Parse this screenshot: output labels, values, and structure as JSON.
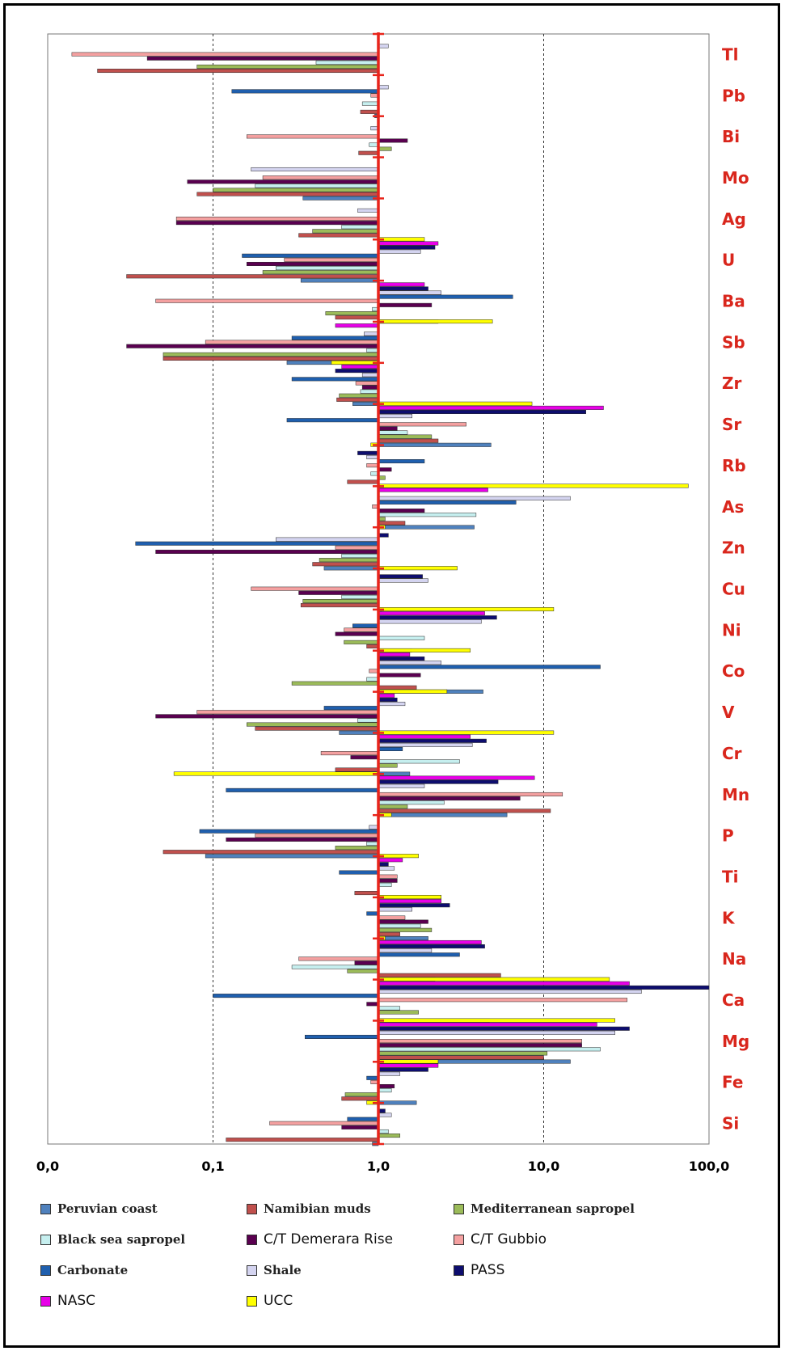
{
  "chart_data": {
    "type": "bar",
    "orientation": "horizontal",
    "x_scale": "log",
    "xlim": [
      0.01,
      100
    ],
    "x_tick_labels": [
      "0,0",
      "0,1",
      "1,0",
      "10,0",
      "100,0"
    ],
    "grid": "dotted vertical lines at 0.1 and 10",
    "reference_line": {
      "value": 1.0,
      "color": "#e8241b"
    },
    "categories": [
      "Tl",
      "Pb",
      "Bi",
      "Mo",
      "Ag",
      "U",
      "Ba",
      "Sb",
      "Zr",
      "Sr",
      "Rb",
      "As",
      "Zn",
      "Cu",
      "Ni",
      "Co",
      "V",
      "Cr",
      "Mn",
      "P",
      "Ti",
      "K",
      "Na",
      "Ca",
      "Mg",
      "Fe",
      "Si"
    ],
    "series": [
      {
        "name": "Peruvian coast",
        "color": "#4f81bd",
        "label_style": "serif",
        "values": [
          null,
          0.95,
          null,
          0.35,
          null,
          0.34,
          2.3,
          0.28,
          0.7,
          4.8,
          1.1,
          3.8,
          0.47,
          1.05,
          1.6,
          4.3,
          0.58,
          1.55,
          6.0,
          0.09,
          null,
          2.0,
          2.2,
          4.7,
          14.5,
          1.7,
          0.92
        ]
      },
      {
        "name": "Namibian muds",
        "color": "#c0504d",
        "label_style": "serif",
        "values": [
          0.02,
          0.78,
          0.76,
          0.08,
          0.33,
          0.03,
          0.55,
          0.05,
          0.56,
          2.3,
          0.65,
          1.45,
          0.4,
          0.34,
          0.85,
          1.7,
          0.18,
          0.55,
          11.0,
          0.05,
          0.72,
          1.35,
          5.5,
          null,
          10.0,
          0.6,
          0.12
        ]
      },
      {
        "name": "Mediterranean sapropel",
        "color": "#9bbb59",
        "label_style": "serif",
        "values": [
          0.08,
          null,
          1.2,
          0.1,
          0.4,
          0.2,
          0.48,
          0.05,
          0.58,
          2.1,
          1.1,
          1.1,
          0.44,
          0.35,
          0.62,
          0.3,
          0.16,
          1.3,
          1.5,
          0.55,
          null,
          2.1,
          0.65,
          1.75,
          10.5,
          0.63,
          1.35
        ]
      },
      {
        "name": "Black sea sapropel",
        "color": "#c6efef",
        "label_style": "serif",
        "values": [
          0.42,
          0.8,
          0.88,
          0.18,
          0.6,
          0.24,
          0.92,
          0.85,
          0.78,
          1.5,
          0.9,
          3.9,
          0.6,
          0.6,
          1.9,
          0.85,
          0.75,
          3.1,
          2.5,
          0.85,
          1.2,
          1.8,
          0.3,
          1.35,
          22.0,
          1.2,
          1.15
        ]
      },
      {
        "name": "C/T Demerara Rise",
        "color": "#5a0050",
        "label_style": "sans",
        "values": [
          0.04,
          null,
          1.5,
          0.07,
          0.06,
          0.16,
          2.1,
          0.03,
          0.8,
          1.3,
          1.2,
          1.9,
          0.045,
          0.33,
          0.55,
          1.8,
          0.045,
          0.68,
          7.2,
          0.12,
          1.3,
          2.0,
          0.72,
          0.85,
          17.0,
          1.25,
          0.6
        ]
      },
      {
        "name": "C/T Gubbio",
        "color": "#f4a0a0",
        "label_style": "sans",
        "values": [
          0.014,
          0.9,
          0.16,
          0.2,
          0.06,
          0.27,
          0.045,
          0.09,
          0.73,
          3.4,
          0.85,
          0.92,
          0.55,
          0.17,
          0.62,
          0.88,
          0.08,
          0.45,
          13.0,
          0.18,
          1.3,
          1.45,
          0.33,
          32.0,
          17.0,
          0.9,
          0.22
        ]
      },
      {
        "name": "Carbonate",
        "color": "#1f5fae",
        "label_style": "serif",
        "values": [
          null,
          0.13,
          null,
          null,
          null,
          0.15,
          6.5,
          0.3,
          0.3,
          0.28,
          1.9,
          6.8,
          0.034,
          null,
          0.7,
          22.0,
          0.47,
          1.4,
          0.12,
          0.083,
          0.58,
          0.85,
          3.1,
          0.1,
          0.36,
          0.85,
          0.65
        ]
      },
      {
        "name": "Shale",
        "color": "#d4d4f0",
        "label_style": "serif",
        "values": [
          1.15,
          1.15,
          0.9,
          0.17,
          0.75,
          1.8,
          2.4,
          0.82,
          0.8,
          1.6,
          0.85,
          14.5,
          0.24,
          2.0,
          4.2,
          2.4,
          1.45,
          3.7,
          1.9,
          0.88,
          1.25,
          1.6,
          2.1,
          39.0,
          27.0,
          1.35,
          1.2
        ]
      },
      {
        "name": "PASS",
        "color": "#0d0d6e",
        "label_style": "sans",
        "values": [
          null,
          null,
          null,
          null,
          null,
          2.2,
          2.0,
          null,
          0.55,
          18.0,
          0.75,
          null,
          1.15,
          1.85,
          5.2,
          1.9,
          1.3,
          4.5,
          5.3,
          null,
          1.15,
          2.7,
          4.4,
          100.0,
          33.0,
          2.0,
          1.1
        ]
      },
      {
        "name": "NASC",
        "color": "#e800e8",
        "label_style": "sans",
        "values": [
          null,
          null,
          null,
          null,
          null,
          2.3,
          1.9,
          0.55,
          0.6,
          23.0,
          null,
          4.6,
          null,
          null,
          4.4,
          1.55,
          1.25,
          3.6,
          8.8,
          null,
          1.4,
          2.4,
          4.2,
          33.0,
          21.0,
          2.3,
          null
        ]
      },
      {
        "name": "UCC",
        "color": "#ffff00",
        "label_style": "sans",
        "values": [
          null,
          null,
          null,
          null,
          null,
          1.9,
          null,
          4.9,
          0.52,
          8.5,
          0.9,
          75.0,
          1.1,
          3.0,
          11.5,
          3.6,
          2.6,
          11.5,
          0.058,
          1.2,
          1.75,
          2.4,
          1.1,
          25.0,
          27.0,
          2.3,
          0.85
        ]
      }
    ]
  }
}
